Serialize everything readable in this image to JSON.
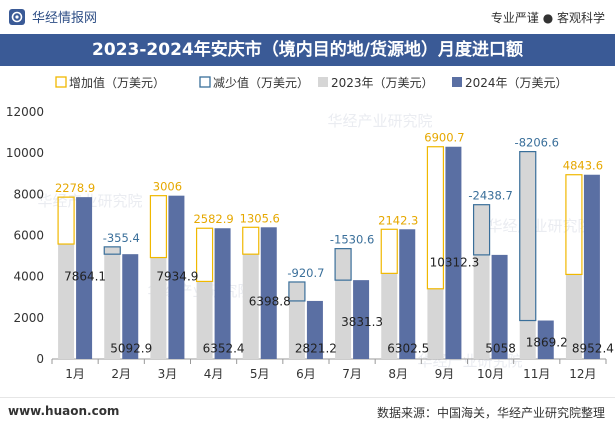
{
  "header": {
    "brand": "华经情报网",
    "slogan": "专业严谨 ● 客观科学"
  },
  "footer": {
    "url": "www.huaon.com",
    "source": "数据来源：中国海关，华经产业研究院整理"
  },
  "watermark": "华经产业研究院",
  "colors": {
    "title_bg": "#3a5a96",
    "bar_2023": "#d6d6d6",
    "bar_2024": "#5a6fa3",
    "increase": "#f0b800",
    "decrease": "#3a6f9a",
    "label_increase": "#e6a800",
    "label_decrease": "#3a6f9a"
  },
  "chart_data": {
    "type": "bar",
    "title": "2023-2024年安庆市（境内目的地/货源地）月度进口额",
    "categories": [
      "1月",
      "2月",
      "3月",
      "4月",
      "5月",
      "6月",
      "7月",
      "8月",
      "9月",
      "10月",
      "11月",
      "12月"
    ],
    "series": [
      {
        "name": "2023年（万美元）",
        "values": [
          5585.2,
          5448.3,
          4928.9,
          3769.5,
          5093.2,
          3741.9,
          5361.9,
          4160.3,
          3411.6,
          7496.7,
          10075.8,
          4108.8
        ]
      },
      {
        "name": "2024年（万美元）",
        "values": [
          7864.1,
          5092.9,
          7934.9,
          6352.4,
          6398.8,
          2821.2,
          3831.3,
          6302.5,
          10312.3,
          5058,
          1869.2,
          8952.4
        ]
      }
    ],
    "legend": [
      "增加值（万美元）",
      "减少值（万美元）",
      "2023年（万美元）",
      "2024年（万美元）"
    ],
    "changes": [
      2278.9,
      -355.4,
      3006,
      2582.9,
      1305.6,
      -920.7,
      -1530.6,
      2142.3,
      6900.7,
      -2438.7,
      -8206.6,
      4843.6
    ],
    "change_labels": [
      "2278.9",
      "-355.4",
      "3006",
      "2582.9",
      "1305.6",
      "-920.7",
      "-1530.6",
      "2142.3",
      "6900.7",
      "-2438.7",
      "-8206.6",
      "4843.6"
    ],
    "value_labels_2024": [
      "7864.1",
      "5092.9",
      "7934.9",
      "6352.4",
      "6398.8",
      "2821.2",
      "3831.3",
      "6302.5",
      "10312.3",
      "5058",
      "1869.2",
      "8952.4"
    ],
    "yticks": [
      "0",
      "2000",
      "4000",
      "6000",
      "8000",
      "10000",
      "12000"
    ],
    "ylim": [
      0,
      12000
    ],
    "legend_position": "top-left",
    "grid": false
  }
}
